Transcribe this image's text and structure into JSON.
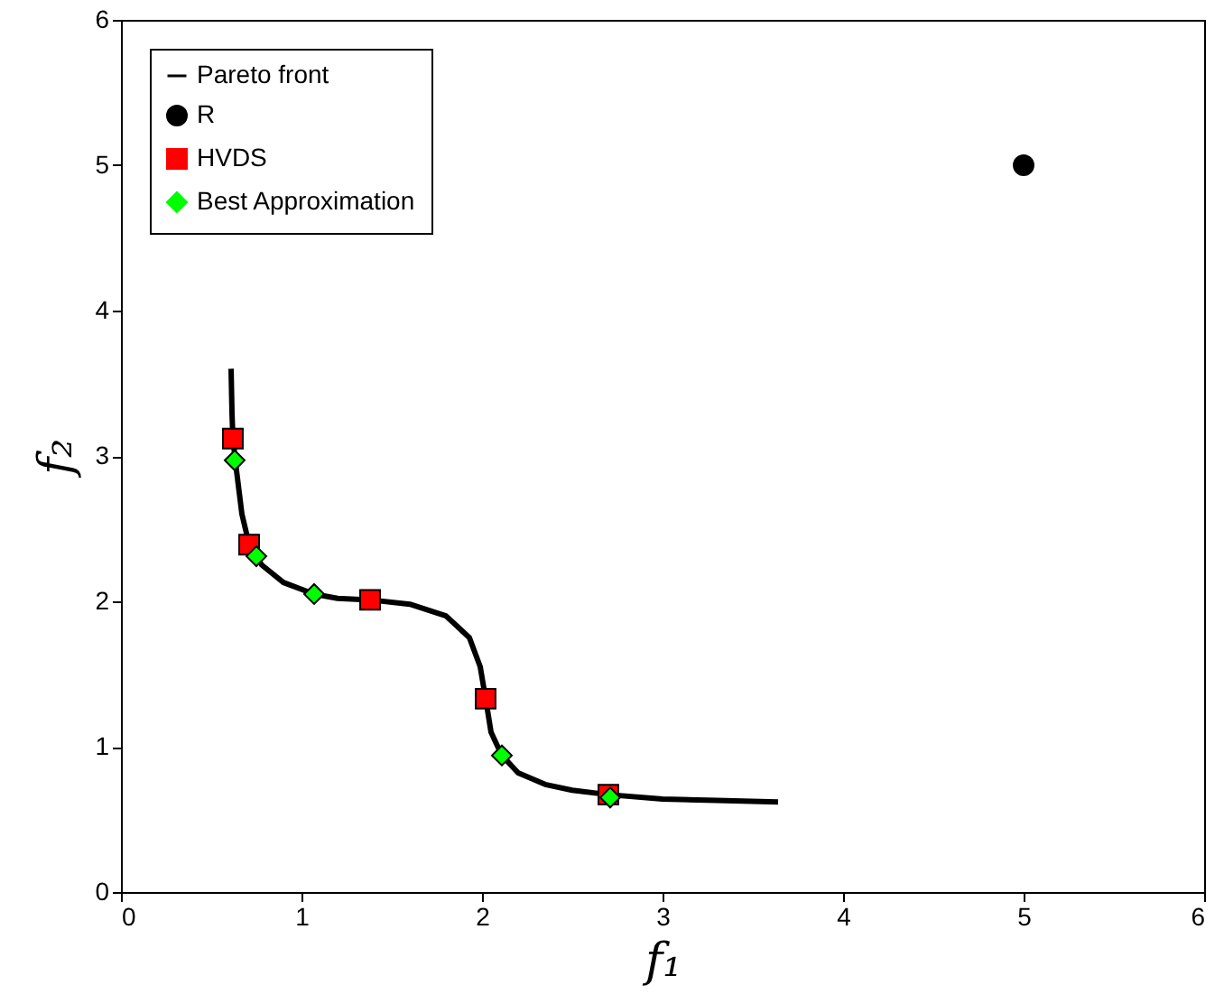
{
  "chart_data": {
    "type": "scatter",
    "xlabel": "f₁",
    "ylabel": "f₂",
    "xlim": [
      0,
      6
    ],
    "ylim": [
      0,
      6
    ],
    "xticks": [
      0,
      1,
      2,
      3,
      4,
      5,
      6
    ],
    "yticks": [
      0,
      1,
      2,
      3,
      4,
      5,
      6
    ],
    "grid": false,
    "legend": "top left",
    "series": [
      {
        "name": "Pareto front",
        "type": "line",
        "color": "#000000",
        "line_style": "solid",
        "marker": "none",
        "x": [
          0.61,
          0.615,
          0.62,
          0.64,
          0.67,
          0.71,
          0.78,
          0.9,
          1.07,
          1.2,
          1.38,
          1.6,
          1.8,
          1.93,
          1.99,
          2.02,
          2.05,
          2.11,
          2.2,
          2.35,
          2.5,
          2.7,
          3.0,
          3.3,
          3.64
        ],
        "values": [
          3.6,
          3.3,
          3.12,
          2.9,
          2.6,
          2.39,
          2.25,
          2.13,
          2.05,
          2.02,
          2.01,
          1.98,
          1.9,
          1.75,
          1.55,
          1.33,
          1.1,
          0.94,
          0.82,
          0.74,
          0.7,
          0.67,
          0.64,
          0.63,
          0.62
        ]
      },
      {
        "name": "R",
        "color": "#000000",
        "marker": "circle",
        "x": [
          5.0
        ],
        "values": [
          5.0
        ]
      },
      {
        "name": "HVDS",
        "color": "#ff0000",
        "marker": "square",
        "x": [
          0.62,
          0.71,
          1.38,
          2.02,
          2.7
        ],
        "values": [
          3.12,
          2.39,
          2.01,
          1.33,
          0.67
        ]
      },
      {
        "name": "Best Approximation",
        "color": "#00ff00",
        "marker": "diamond",
        "x": [
          0.63,
          0.75,
          1.07,
          2.11,
          2.71
        ],
        "values": [
          2.97,
          2.31,
          2.05,
          0.94,
          0.65
        ]
      }
    ]
  }
}
